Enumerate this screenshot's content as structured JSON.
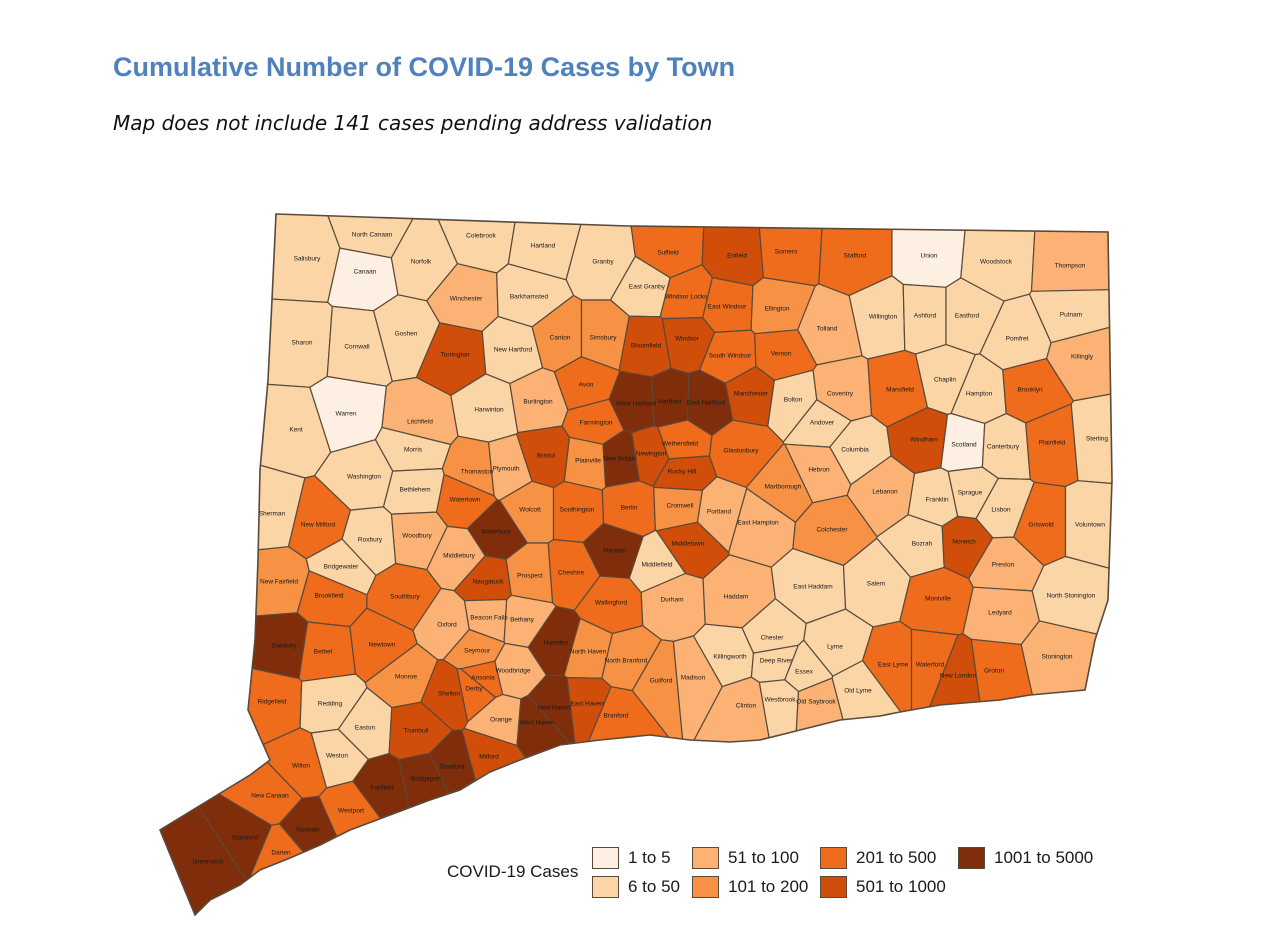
{
  "title": "Cumulative Number of COVID-19 Cases by Town",
  "subtitle": "Map does not include 141 cases pending address validation",
  "legend": {
    "title": "COVID-19 Cases",
    "items": [
      {
        "label": "1 to 5",
        "color": "#fdf0e2"
      },
      {
        "label": "6 to 50",
        "color": "#fcd5a7"
      },
      {
        "label": "51 to 100",
        "color": "#fbb274"
      },
      {
        "label": "101 to 200",
        "color": "#f79245"
      },
      {
        "label": "201 to 500",
        "color": "#ee6c1b"
      },
      {
        "label": "501 to 1000",
        "color": "#d04e0a"
      },
      {
        "label": "1001 to 5000",
        "color": "#7f2d0b"
      }
    ]
  },
  "towns": [
    {
      "name": "Salisbury",
      "bin": 1
    },
    {
      "name": "North Canaan",
      "bin": 1
    },
    {
      "name": "Canaan",
      "bin": 0
    },
    {
      "name": "Norfolk",
      "bin": 1
    },
    {
      "name": "Colebrook",
      "bin": 1
    },
    {
      "name": "Hartland",
      "bin": 1
    },
    {
      "name": "Granby",
      "bin": 1
    },
    {
      "name": "Suffield",
      "bin": 4
    },
    {
      "name": "Enfield",
      "bin": 5
    },
    {
      "name": "Somers",
      "bin": 4
    },
    {
      "name": "Stafford",
      "bin": 4
    },
    {
      "name": "Union",
      "bin": 0
    },
    {
      "name": "Woodstock",
      "bin": 1
    },
    {
      "name": "Thompson",
      "bin": 2
    },
    {
      "name": "Sharon",
      "bin": 1
    },
    {
      "name": "Cornwall",
      "bin": 1
    },
    {
      "name": "Goshen",
      "bin": 1
    },
    {
      "name": "Winchester",
      "bin": 2
    },
    {
      "name": "Barkhamsted",
      "bin": 1
    },
    {
      "name": "East Granby",
      "bin": 1
    },
    {
      "name": "Windsor Locks",
      "bin": 4
    },
    {
      "name": "East Windsor",
      "bin": 4
    },
    {
      "name": "Ellington",
      "bin": 3
    },
    {
      "name": "Willington",
      "bin": 1
    },
    {
      "name": "Ashford",
      "bin": 1
    },
    {
      "name": "Eastford",
      "bin": 1
    },
    {
      "name": "Putnam",
      "bin": 1
    },
    {
      "name": "Torrington",
      "bin": 5
    },
    {
      "name": "New Hartford",
      "bin": 1
    },
    {
      "name": "Canton",
      "bin": 3
    },
    {
      "name": "Simsbury",
      "bin": 3
    },
    {
      "name": "Bloomfield",
      "bin": 5
    },
    {
      "name": "Windsor",
      "bin": 5
    },
    {
      "name": "South Windsor",
      "bin": 4
    },
    {
      "name": "Vernon",
      "bin": 4
    },
    {
      "name": "Tolland",
      "bin": 2
    },
    {
      "name": "Pomfret",
      "bin": 1
    },
    {
      "name": "Killingly",
      "bin": 2
    },
    {
      "name": "Kent",
      "bin": 1
    },
    {
      "name": "Warren",
      "bin": 0
    },
    {
      "name": "Litchfield",
      "bin": 2
    },
    {
      "name": "Harwinton",
      "bin": 1
    },
    {
      "name": "Burlington",
      "bin": 2
    },
    {
      "name": "Avon",
      "bin": 4
    },
    {
      "name": "West Hartford",
      "bin": 6
    },
    {
      "name": "Hartford",
      "bin": 6
    },
    {
      "name": "East Hartford",
      "bin": 6
    },
    {
      "name": "Manchester",
      "bin": 5
    },
    {
      "name": "Bolton",
      "bin": 1
    },
    {
      "name": "Coventry",
      "bin": 2
    },
    {
      "name": "Mansfield",
      "bin": 4
    },
    {
      "name": "Chaplin",
      "bin": 1
    },
    {
      "name": "Hampton",
      "bin": 1
    },
    {
      "name": "Brooklyn",
      "bin": 4
    },
    {
      "name": "Morris",
      "bin": 1
    },
    {
      "name": "Thomaston",
      "bin": 3
    },
    {
      "name": "Plymouth",
      "bin": 2
    },
    {
      "name": "Bristol",
      "bin": 5
    },
    {
      "name": "Farmington",
      "bin": 4
    },
    {
      "name": "Plainville",
      "bin": 3
    },
    {
      "name": "New Britain",
      "bin": 6
    },
    {
      "name": "Newington",
      "bin": 5
    },
    {
      "name": "Wethersfield",
      "bin": 4
    },
    {
      "name": "Rocky Hill",
      "bin": 5
    },
    {
      "name": "Glastonbury",
      "bin": 4
    },
    {
      "name": "Andover",
      "bin": 1
    },
    {
      "name": "Columbia",
      "bin": 1
    },
    {
      "name": "Hebron",
      "bin": 2
    },
    {
      "name": "Windham",
      "bin": 5
    },
    {
      "name": "Scotland",
      "bin": 0
    },
    {
      "name": "Canterbury",
      "bin": 1
    },
    {
      "name": "Plainfield",
      "bin": 4
    },
    {
      "name": "Sterling",
      "bin": 1
    },
    {
      "name": "Washington",
      "bin": 1
    },
    {
      "name": "Bethlehem",
      "bin": 1
    },
    {
      "name": "Watertown",
      "bin": 4
    },
    {
      "name": "Wolcott",
      "bin": 3
    },
    {
      "name": "Southington",
      "bin": 4
    },
    {
      "name": "Berlin",
      "bin": 4
    },
    {
      "name": "Cromwell",
      "bin": 3
    },
    {
      "name": "Portland",
      "bin": 2
    },
    {
      "name": "Marlborough",
      "bin": 3
    },
    {
      "name": "Lebanon",
      "bin": 2
    },
    {
      "name": "Franklin",
      "bin": 1
    },
    {
      "name": "Sprague",
      "bin": 1
    },
    {
      "name": "Lisbon",
      "bin": 1
    },
    {
      "name": "Griswold",
      "bin": 4
    },
    {
      "name": "Voluntown",
      "bin": 1
    },
    {
      "name": "Sherman",
      "bin": 1
    },
    {
      "name": "New Milford",
      "bin": 4
    },
    {
      "name": "Roxbury",
      "bin": 1
    },
    {
      "name": "Woodbury",
      "bin": 2
    },
    {
      "name": "Waterbury",
      "bin": 6
    },
    {
      "name": "Middlebury",
      "bin": 2
    },
    {
      "name": "Meriden",
      "bin": 6
    },
    {
      "name": "Middletown",
      "bin": 5
    },
    {
      "name": "East Hampton",
      "bin": 2
    },
    {
      "name": "Colchester",
      "bin": 3
    },
    {
      "name": "Bozrah",
      "bin": 1
    },
    {
      "name": "Norwich",
      "bin": 5
    },
    {
      "name": "Bridgewater",
      "bin": 1
    },
    {
      "name": "New Fairfield",
      "bin": 3
    },
    {
      "name": "Brookfield",
      "bin": 4
    },
    {
      "name": "Southbury",
      "bin": 4
    },
    {
      "name": "Naugatuck",
      "bin": 5
    },
    {
      "name": "Prospect",
      "bin": 3
    },
    {
      "name": "Cheshire",
      "bin": 4
    },
    {
      "name": "Middlefield",
      "bin": 1
    },
    {
      "name": "Durham",
      "bin": 2
    },
    {
      "name": "Haddam",
      "bin": 2
    },
    {
      "name": "East Haddam",
      "bin": 1
    },
    {
      "name": "Salem",
      "bin": 1
    },
    {
      "name": "Montville",
      "bin": 4
    },
    {
      "name": "Preston",
      "bin": 2
    },
    {
      "name": "Ledyard",
      "bin": 2
    },
    {
      "name": "North Stonington",
      "bin": 1
    },
    {
      "name": "Danbury",
      "bin": 6
    },
    {
      "name": "Bethel",
      "bin": 4
    },
    {
      "name": "Newtown",
      "bin": 4
    },
    {
      "name": "Oxford",
      "bin": 2
    },
    {
      "name": "Beacon Falls",
      "bin": 2
    },
    {
      "name": "Bethany",
      "bin": 2
    },
    {
      "name": "Hamden",
      "bin": 6
    },
    {
      "name": "Wallingford",
      "bin": 4
    },
    {
      "name": "North Haven",
      "bin": 3
    },
    {
      "name": "North Branford",
      "bin": 3
    },
    {
      "name": "Guilford",
      "bin": 3
    },
    {
      "name": "Madison",
      "bin": 2
    },
    {
      "name": "Killingworth",
      "bin": 1
    },
    {
      "name": "Chester",
      "bin": 1
    },
    {
      "name": "Deep River",
      "bin": 1
    },
    {
      "name": "Essex",
      "bin": 1
    },
    {
      "name": "Lyme",
      "bin": 1
    },
    {
      "name": "East Lyme",
      "bin": 4
    },
    {
      "name": "Waterford",
      "bin": 4
    },
    {
      "name": "New London",
      "bin": 5
    },
    {
      "name": "Groton",
      "bin": 4
    },
    {
      "name": "Stonington",
      "bin": 2
    },
    {
      "name": "Ridgefield",
      "bin": 4
    },
    {
      "name": "Redding",
      "bin": 1
    },
    {
      "name": "Monroe",
      "bin": 3
    },
    {
      "name": "Seymour",
      "bin": 3
    },
    {
      "name": "Ansonia",
      "bin": 4
    },
    {
      "name": "Derby",
      "bin": 4
    },
    {
      "name": "Woodbridge",
      "bin": 2
    },
    {
      "name": "Shelton",
      "bin": 5
    },
    {
      "name": "Orange",
      "bin": 2
    },
    {
      "name": "West Haven",
      "bin": 6
    },
    {
      "name": "New Haven",
      "bin": 6
    },
    {
      "name": "East Haven",
      "bin": 5
    },
    {
      "name": "Branford",
      "bin": 4
    },
    {
      "name": "Clinton",
      "bin": 2
    },
    {
      "name": "Westbrook",
      "bin": 1
    },
    {
      "name": "Old Saybrook",
      "bin": 2
    },
    {
      "name": "Old Lyme",
      "bin": 1
    },
    {
      "name": "Easton",
      "bin": 1
    },
    {
      "name": "Trumbull",
      "bin": 5
    },
    {
      "name": "Weston",
      "bin": 1
    },
    {
      "name": "Wilton",
      "bin": 4
    },
    {
      "name": "Fairfield",
      "bin": 6
    },
    {
      "name": "Bridgeport",
      "bin": 6
    },
    {
      "name": "Stratford",
      "bin": 6
    },
    {
      "name": "Milford",
      "bin": 5
    },
    {
      "name": "New Canaan",
      "bin": 4
    },
    {
      "name": "Westport",
      "bin": 4
    },
    {
      "name": "Norwalk",
      "bin": 6
    },
    {
      "name": "Darien",
      "bin": 4
    },
    {
      "name": "Stamford",
      "bin": 6
    },
    {
      "name": "Greenwich",
      "bin": 6
    }
  ]
}
